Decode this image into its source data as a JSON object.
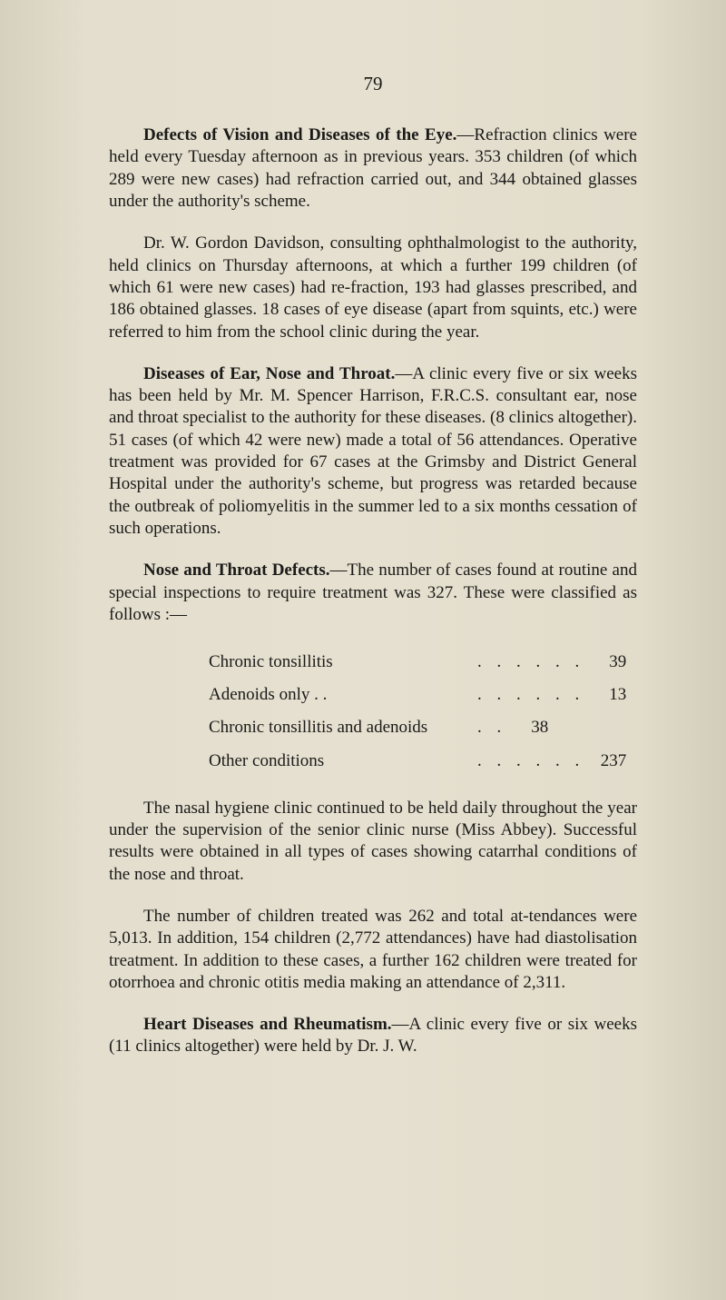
{
  "page_number": "79",
  "paragraphs": {
    "p1a": "Defects of Vision and Diseases of the Eye.",
    "p1b": "—Refraction clinics were held every Tuesday afternoon as in previous years. 353 children (of which 289 were new cases) had refraction carried out, and 344 obtained glasses under the authority's scheme.",
    "p2": "Dr. W. Gordon Davidson, consulting ophthalmologist to the authority, held clinics on Thursday afternoons, at which a further 199 children (of which 61 were new cases) had re-fraction, 193 had glasses prescribed, and 186 obtained glasses. 18 cases of eye disease (apart from squints, etc.) were referred to him from the school clinic during the year.",
    "p3a": "Diseases of Ear, Nose and Throat.",
    "p3b": "—A clinic every five or six weeks has been held by Mr. M. Spencer Harrison, F.R.C.S. consultant ear, nose and throat specialist to the authority for these diseases. (8 clinics altogether). 51 cases (of which 42 were new) made a total of 56 attendances. Operative treatment was provided for 67 cases at the Grimsby and District General Hospital under the authority's scheme, but progress was retarded because the outbreak of poliomyelitis in the summer led to a six months cessation of such operations.",
    "p4a": "Nose and Throat Defects.",
    "p4b": "—The number of cases found at routine and special inspections to require treatment was 327. These were classified as follows :—",
    "p5": "The nasal hygiene clinic continued to be held daily throughout the year under the supervision of the senior clinic nurse (Miss Abbey). Successful results were obtained in all types of cases showing catarrhal conditions of the nose and throat.",
    "p6": "The number of children treated was 262 and total at-tendances were 5,013. In addition, 154 children (2,772 attendances) have had diastolisation treatment. In addition to these cases, a further 162 children were treated for otorrhoea and chronic otitis media making an attendance of 2,311.",
    "p7a": "Heart Diseases and Rheumatism.",
    "p7b": "—A clinic every five or six weeks (11 clinics altogether) were held by Dr. J. W."
  },
  "table": {
    "rows": [
      {
        "label": "Chronic tonsillitis",
        "dots": ". .   . .   . .",
        "value": "39"
      },
      {
        "label": "Adenoids only  . .",
        "dots": ". .   . .   . .",
        "value": "13"
      },
      {
        "label": "Chronic tonsillitis and adenoids",
        "dots": ". .",
        "value": "38"
      },
      {
        "label": "Other conditions",
        "dots": ". .   . .   . .",
        "value": "237"
      }
    ]
  }
}
